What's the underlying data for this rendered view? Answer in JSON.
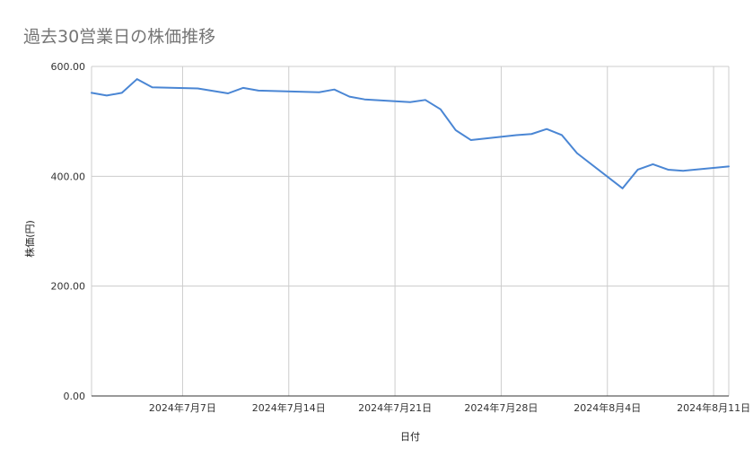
{
  "chart_data": {
    "type": "line",
    "title": "過去30営業日の株価推移",
    "xlabel": "日付",
    "ylabel": "株価(円)",
    "ylim": [
      0,
      600
    ],
    "yticks": [
      0,
      200,
      400,
      600
    ],
    "ytick_labels": [
      "0.00",
      "200.00",
      "400.00",
      "600.00"
    ],
    "xlim": [
      "2024-07-01",
      "2024-08-12"
    ],
    "xticks": [
      "2024-07-07",
      "2024-07-14",
      "2024-07-21",
      "2024-07-28",
      "2024-08-04",
      "2024-08-11"
    ],
    "xtick_labels": [
      "2024年7月7日",
      "2024年7月14日",
      "2024年7月21日",
      "2024年7月28日",
      "2024年8月4日",
      "2024年8月11日"
    ],
    "grid": true,
    "legend": "none",
    "series": [
      {
        "color": "#4a86d4",
        "points": [
          {
            "x": "2024-07-01",
            "y": 552
          },
          {
            "x": "2024-07-02",
            "y": 547
          },
          {
            "x": "2024-07-03",
            "y": 552
          },
          {
            "x": "2024-07-04",
            "y": 577
          },
          {
            "x": "2024-07-05",
            "y": 562
          },
          {
            "x": "2024-07-08",
            "y": 560
          },
          {
            "x": "2024-07-10",
            "y": 551
          },
          {
            "x": "2024-07-11",
            "y": 561
          },
          {
            "x": "2024-07-12",
            "y": 556
          },
          {
            "x": "2024-07-16",
            "y": 553
          },
          {
            "x": "2024-07-17",
            "y": 558
          },
          {
            "x": "2024-07-18",
            "y": 545
          },
          {
            "x": "2024-07-19",
            "y": 540
          },
          {
            "x": "2024-07-22",
            "y": 535
          },
          {
            "x": "2024-07-23",
            "y": 539
          },
          {
            "x": "2024-07-24",
            "y": 522
          },
          {
            "x": "2024-07-25",
            "y": 484
          },
          {
            "x": "2024-07-26",
            "y": 466
          },
          {
            "x": "2024-07-29",
            "y": 475
          },
          {
            "x": "2024-07-30",
            "y": 477
          },
          {
            "x": "2024-07-31",
            "y": 486
          },
          {
            "x": "2024-08-01",
            "y": 475
          },
          {
            "x": "2024-08-02",
            "y": 442
          },
          {
            "x": "2024-08-05",
            "y": 378
          },
          {
            "x": "2024-08-06",
            "y": 412
          },
          {
            "x": "2024-08-07",
            "y": 422
          },
          {
            "x": "2024-08-08",
            "y": 412
          },
          {
            "x": "2024-08-09",
            "y": 410
          },
          {
            "x": "2024-08-12",
            "y": 418
          }
        ]
      }
    ]
  }
}
